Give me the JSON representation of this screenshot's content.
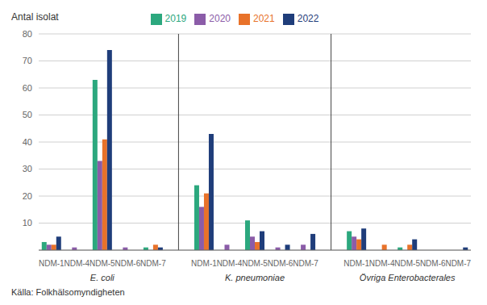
{
  "chart_data": {
    "type": "bar",
    "ylabel": "Antal isolat",
    "source": "Källa: Folkhälsomyndigheten",
    "ylim": [
      0,
      80
    ],
    "yticks": [
      10,
      20,
      30,
      40,
      50,
      60,
      70,
      80
    ],
    "grid": true,
    "legend": "top",
    "groups": [
      {
        "name": "E. coli",
        "categories": [
          "NDM-1",
          "NDM-4",
          "NDM-5",
          "NDM-6",
          "NDM-7"
        ]
      },
      {
        "name": "K. pneumoniae",
        "categories": [
          "NDM-1",
          "NDM-4",
          "NDM-5",
          "NDM-6",
          "NDM-7"
        ]
      },
      {
        "name": "Övriga Enterobacterales",
        "categories": [
          "NDM-1",
          "NDM-4",
          "NDM-5",
          "NDM-6",
          "NDM-7"
        ]
      }
    ],
    "series": [
      {
        "name": "2019",
        "color": "#2ca87e",
        "values": [
          3,
          0,
          63,
          0,
          1,
          24,
          0,
          11,
          0,
          0,
          7,
          0,
          1,
          0,
          0
        ]
      },
      {
        "name": "2020",
        "color": "#8b5ca8",
        "values": [
          2,
          1,
          33,
          1,
          0,
          16,
          2,
          5,
          1,
          2,
          5,
          0,
          0,
          0,
          0
        ]
      },
      {
        "name": "2021",
        "color": "#e8722a",
        "values": [
          2,
          0,
          41,
          0,
          2,
          21,
          0,
          3,
          0,
          0,
          4,
          2,
          2,
          0,
          0
        ]
      },
      {
        "name": "2022",
        "color": "#1f3d7a",
        "values": [
          5,
          0,
          74,
          0,
          1,
          43,
          0,
          7,
          2,
          6,
          8,
          0,
          4,
          0,
          1
        ]
      }
    ]
  }
}
